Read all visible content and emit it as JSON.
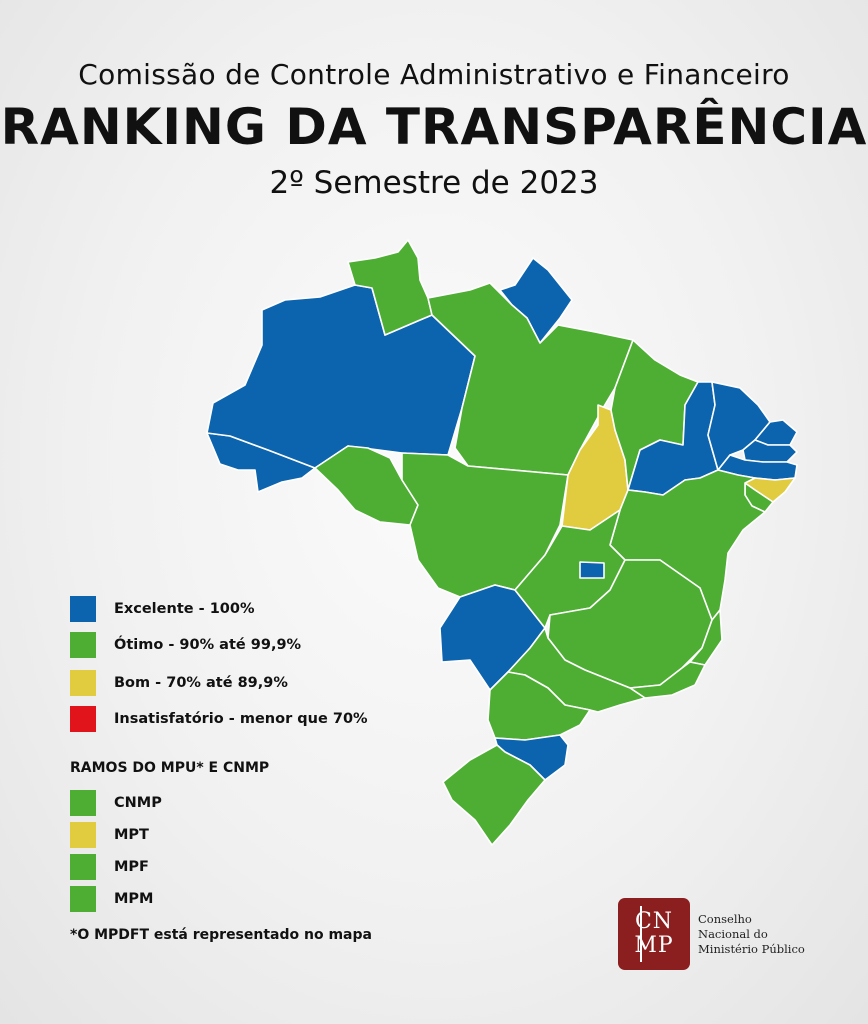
{
  "header": {
    "subtitle": "Comissão de Controle Administrativo e Financeiro",
    "title": "RANKING  DA TRANSPARÊNCIA",
    "period": "2º Semestre de 2023"
  },
  "colors": {
    "excelente": "#0b64ad",
    "otimo": "#4eae33",
    "bom": "#e1cc3f",
    "insatisfatorio": "#e2141b",
    "logo": "#8b1e1e"
  },
  "legend": [
    {
      "label": "Excelente - 100%",
      "color": "#0b64ad"
    },
    {
      "label": "Ótimo - 90% até 99,9%",
      "color": "#4eae33"
    },
    {
      "label": "Bom - 70% até 89,9%",
      "color": "#e1cc3f"
    },
    {
      "label": "Insatisfatório - menor que 70%",
      "color": "#e2141b"
    }
  ],
  "branches": {
    "title": "RAMOS DO MPU* E CNMP",
    "items": [
      {
        "label": "CNMP",
        "color": "#4eae33"
      },
      {
        "label": "MPT",
        "color": "#e1cc3f"
      },
      {
        "label": "MPF",
        "color": "#4eae33"
      },
      {
        "label": "MPM",
        "color": "#4eae33"
      }
    ]
  },
  "footnote": "*O MPDFT está representado no mapa",
  "logo": {
    "line1": "CN",
    "line2": "MP",
    "name_lines": [
      "Conselho",
      "Nacional do",
      "Ministério Público"
    ]
  },
  "states": [
    {
      "uf": "AC",
      "rating": "excelente"
    },
    {
      "uf": "AM",
      "rating": "excelente"
    },
    {
      "uf": "RR",
      "rating": "otimo"
    },
    {
      "uf": "AP",
      "rating": "excelente"
    },
    {
      "uf": "PA",
      "rating": "otimo"
    },
    {
      "uf": "RO",
      "rating": "otimo"
    },
    {
      "uf": "MT",
      "rating": "otimo"
    },
    {
      "uf": "MS",
      "rating": "excelente"
    },
    {
      "uf": "TO",
      "rating": "bom"
    },
    {
      "uf": "MA",
      "rating": "otimo"
    },
    {
      "uf": "PI",
      "rating": "excelente"
    },
    {
      "uf": "CE",
      "rating": "excelente"
    },
    {
      "uf": "RN",
      "rating": "excelente"
    },
    {
      "uf": "PB",
      "rating": "excelente"
    },
    {
      "uf": "PE",
      "rating": "excelente"
    },
    {
      "uf": "AL",
      "rating": "bom"
    },
    {
      "uf": "SE",
      "rating": "otimo"
    },
    {
      "uf": "BA",
      "rating": "otimo"
    },
    {
      "uf": "GO",
      "rating": "otimo"
    },
    {
      "uf": "DF",
      "rating": "excelente"
    },
    {
      "uf": "MG",
      "rating": "otimo"
    },
    {
      "uf": "ES",
      "rating": "otimo"
    },
    {
      "uf": "RJ",
      "rating": "otimo"
    },
    {
      "uf": "SP",
      "rating": "otimo"
    },
    {
      "uf": "PR",
      "rating": "otimo"
    },
    {
      "uf": "SC",
      "rating": "excelente"
    },
    {
      "uf": "RS",
      "rating": "otimo"
    }
  ]
}
